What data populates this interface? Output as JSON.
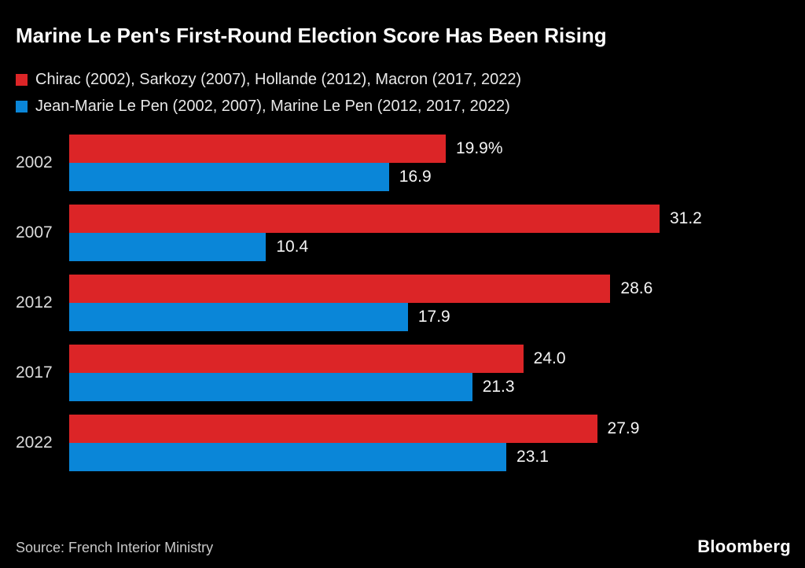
{
  "title": "Marine Le Pen's First-Round Election Score Has Been Rising",
  "colors": {
    "background": "#000000",
    "red": "#dc2527",
    "blue": "#0a86d8",
    "text": "#ffffff",
    "muted_text": "#c9c9c9"
  },
  "legend": [
    {
      "label": "Chirac (2002), Sarkozy (2007), Hollande (2012), Macron (2017, 2022)",
      "color": "#dc2527"
    },
    {
      "label": "Jean-Marie Le Pen (2002, 2007), Marine Le Pen (2012, 2017, 2022)",
      "color": "#0a86d8"
    }
  ],
  "chart_data": {
    "type": "bar",
    "orientation": "horizontal",
    "categories": [
      "2002",
      "2007",
      "2012",
      "2017",
      "2022"
    ],
    "series": [
      {
        "name": "Chirac (2002), Sarkozy (2007), Hollande (2012), Macron (2017, 2022)",
        "color": "#dc2527",
        "values": [
          19.9,
          31.2,
          28.6,
          24.0,
          27.9
        ],
        "labels": [
          "19.9%",
          "31.2",
          "28.6",
          "24.0",
          "27.9"
        ]
      },
      {
        "name": "Jean-Marie Le Pen (2002, 2007), Marine Le Pen (2012, 2017, 2022)",
        "color": "#0a86d8",
        "values": [
          16.9,
          10.4,
          17.9,
          21.3,
          23.1
        ],
        "labels": [
          "16.9",
          "10.4",
          "17.9",
          "21.3",
          "23.1"
        ]
      }
    ],
    "xlim": [
      0,
      34
    ],
    "grid": false,
    "legend_position": "top",
    "value_labels_shown": true,
    "unit": "percent"
  },
  "footer": {
    "source": "Source: French Interior Ministry",
    "brand": "Bloomberg"
  }
}
